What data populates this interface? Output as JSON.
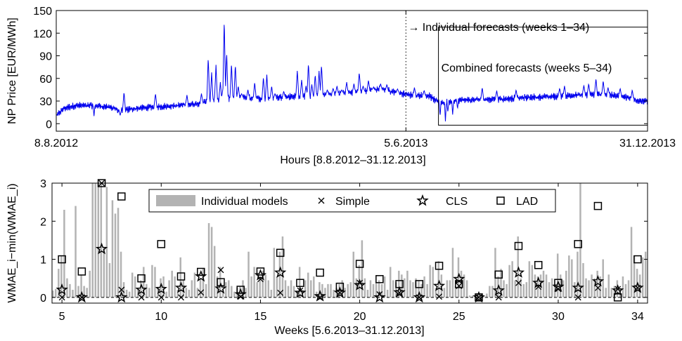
{
  "chart_data": [
    {
      "type": "line",
      "ylabel": "NP Price [EUR/MWh]",
      "xlabel": "Hours [8.8.2012–31.12.2013]",
      "ylim": [
        -10,
        150
      ],
      "yticks": [
        0,
        30,
        60,
        90,
        120,
        150
      ],
      "xlim_hours": [
        0,
        12216
      ],
      "xticks": [
        {
          "hour": 0,
          "label": "8.8.2012"
        },
        {
          "hour": 7224,
          "label": "5.6.2013"
        },
        {
          "hour": 12216,
          "label": "31.12.2013"
        }
      ],
      "split_hour": 7224,
      "annotations": {
        "individual": "→ Individual forecasts (weeks 1–34)",
        "combined": "Combined forecasts (weeks 5–34)"
      },
      "combined_box": {
        "hour_start": 7896,
        "hour_end": 12216,
        "y_bottom": -2,
        "y_top": 128
      },
      "color": "#0000ee",
      "trend": [
        [
          0,
          10
        ],
        [
          150,
          20
        ],
        [
          400,
          24
        ],
        [
          800,
          24
        ],
        [
          1200,
          21
        ],
        [
          1300,
          16
        ],
        [
          1600,
          20
        ],
        [
          2000,
          22
        ],
        [
          2500,
          24
        ],
        [
          2900,
          26
        ],
        [
          3300,
          32
        ],
        [
          3800,
          35
        ],
        [
          4300,
          33
        ],
        [
          4800,
          36
        ],
        [
          5300,
          37
        ],
        [
          5800,
          40
        ],
        [
          6300,
          43
        ],
        [
          6700,
          46
        ],
        [
          7000,
          42
        ],
        [
          7300,
          38
        ],
        [
          7700,
          37
        ],
        [
          7850,
          30
        ],
        [
          8000,
          28
        ],
        [
          8300,
          31
        ],
        [
          8800,
          32
        ],
        [
          9300,
          33
        ],
        [
          9800,
          35
        ],
        [
          10300,
          36
        ],
        [
          10800,
          38
        ],
        [
          11300,
          39
        ],
        [
          11700,
          36
        ],
        [
          12000,
          31
        ],
        [
          12216,
          30
        ]
      ],
      "spikes": [
        [
          1400,
          42
        ],
        [
          2050,
          40
        ],
        [
          2700,
          38
        ],
        [
          3000,
          40
        ],
        [
          3140,
          88
        ],
        [
          3210,
          68
        ],
        [
          3300,
          78
        ],
        [
          3390,
          55
        ],
        [
          3440,
          45
        ],
        [
          3470,
          138
        ],
        [
          3520,
          95
        ],
        [
          3620,
          80
        ],
        [
          3700,
          78
        ],
        [
          3760,
          50
        ],
        [
          3830,
          40
        ],
        [
          3960,
          45
        ],
        [
          4100,
          55
        ],
        [
          4280,
          62
        ],
        [
          4350,
          65
        ],
        [
          4450,
          50
        ],
        [
          4520,
          40
        ],
        [
          4700,
          43
        ],
        [
          4980,
          70
        ],
        [
          5070,
          58
        ],
        [
          5160,
          50
        ],
        [
          5210,
          80
        ],
        [
          5280,
          52
        ],
        [
          5350,
          65
        ],
        [
          5430,
          70
        ],
        [
          5480,
          78
        ],
        [
          5600,
          45
        ],
        [
          5720,
          47
        ],
        [
          5800,
          50
        ],
        [
          5900,
          45
        ],
        [
          6000,
          55
        ],
        [
          6150,
          53
        ],
        [
          6260,
          68
        ],
        [
          6340,
          50
        ],
        [
          6450,
          57
        ],
        [
          6550,
          48
        ],
        [
          6700,
          53
        ],
        [
          6830,
          52
        ],
        [
          7050,
          46
        ],
        [
          7400,
          48
        ],
        [
          7600,
          44
        ],
        [
          8800,
          48
        ],
        [
          9100,
          44
        ],
        [
          9500,
          45
        ],
        [
          10400,
          47
        ],
        [
          10500,
          50
        ],
        [
          10900,
          51
        ],
        [
          11000,
          53
        ],
        [
          11150,
          60
        ],
        [
          11300,
          57
        ],
        [
          11400,
          48
        ],
        [
          11650,
          47
        ],
        [
          11900,
          45
        ]
      ],
      "dips": [
        [
          780,
          10
        ],
        [
          1320,
          11
        ],
        [
          7930,
          10
        ],
        [
          8040,
          3
        ],
        [
          8090,
          15
        ],
        [
          8190,
          12
        ],
        [
          8290,
          20
        ]
      ]
    },
    {
      "type": "bar",
      "ylabel": "WMAE_i−min(WMAE_i)",
      "xlabel": "Weeks [5.6.2013–31.12.2013]",
      "ylim": [
        -0.15,
        3
      ],
      "yticks": [
        0,
        1,
        2,
        3
      ],
      "xlim": [
        4.5,
        34.5
      ],
      "xticks": [
        5,
        10,
        15,
        20,
        25,
        30,
        34
      ],
      "weeks": [
        5,
        6,
        7,
        8,
        9,
        10,
        11,
        12,
        13,
        14,
        15,
        16,
        17,
        18,
        19,
        20,
        21,
        22,
        23,
        24,
        25,
        26,
        27,
        28,
        29,
        30,
        31,
        32,
        33,
        34
      ],
      "individual_models": [
        [
          0.18,
          0.22,
          0.75,
          1.1,
          2.3,
          0.5,
          0.35
        ],
        [
          0.2,
          2.4,
          0.3,
          0.6,
          0.3,
          0.25,
          0.7
        ],
        [
          3.0,
          3.0,
          3.0,
          3.0,
          1.3,
          2.9,
          0.9
        ],
        [
          2.55,
          2.2,
          2.35,
          1.2,
          0.4,
          0.2,
          0.15
        ],
        [
          0.65,
          0.55,
          0.2,
          0.45,
          0.8,
          0.35,
          0.25
        ],
        [
          0.85,
          0.8,
          0.25,
          0.5,
          0.55,
          0.15,
          0.45
        ],
        [
          0.7,
          0.55,
          0.2,
          1.05,
          0.45,
          0.25,
          0.2
        ],
        [
          0.45,
          0.65,
          0.25,
          0.5,
          0.75,
          0.35,
          1.95
        ],
        [
          1.85,
          1.35,
          0.55,
          0.8,
          0.2,
          0.4,
          0.45
        ],
        [
          0.3,
          0.15,
          0.25,
          0.3,
          0.45,
          0.25,
          1.2
        ],
        [
          0.55,
          0.8,
          0.4,
          0.55,
          0.7,
          0.6,
          0.45
        ],
        [
          0.2,
          1.3,
          0.55,
          1.2,
          1.6,
          0.45,
          0.3
        ],
        [
          0.45,
          0.3,
          0.15,
          0.8,
          0.2,
          0.45,
          0.65
        ],
        [
          0.45,
          0.55,
          0.15,
          0.4,
          0.35,
          0.25,
          0.35
        ],
        [
          0.35,
          0.2,
          0.25,
          0.35,
          0.45,
          0.25,
          0.35
        ],
        [
          0.4,
          1.2,
          0.5,
          0.85,
          1.5,
          0.5,
          0.2
        ],
        [
          0.45,
          0.35,
          0.4,
          0.45,
          0.35,
          0.55,
          0.2
        ],
        [
          0.8,
          0.45,
          0.4,
          0.7,
          0.6,
          0.5,
          0.7
        ],
        [
          0.45,
          0.4,
          0.5,
          0.45,
          0.35,
          0.55,
          0.35
        ],
        [
          0.85,
          0.8,
          0.25,
          0.95,
          0.6,
          0.25,
          0.45
        ],
        [
          0.45,
          1.3,
          0.3,
          1.05,
          0.7,
          0.6,
          0.45
        ],
        [
          0.05,
          0.05,
          0.05,
          0.05,
          0.05,
          0.05,
          0.1
        ],
        [
          0.3,
          0.3,
          1.3,
          0.55,
          0.75,
          0.45,
          0.35
        ],
        [
          0.85,
          0.95,
          0.45,
          1.6,
          0.5,
          0.35,
          0.4
        ],
        [
          0.95,
          0.85,
          0.6,
          0.55,
          0.6,
          0.7,
          0.6
        ],
        [
          0.4,
          0.5,
          0.35,
          1.15,
          0.6,
          0.45,
          0.7
        ],
        [
          1.1,
          1.0,
          0.4,
          1.2,
          3.0,
          0.9,
          0.5
        ],
        [
          0.45,
          0.6,
          0.5,
          0.7,
          0.55,
          1.0,
          0.25
        ],
        [
          0.6,
          0.25,
          0.3,
          0.45,
          0.25,
          0.55,
          0.35
        ],
        [
          0.45,
          1.85,
          1.1,
          0.75,
          0.6,
          1.05,
          1.2
        ]
      ],
      "simple": [
        0.0,
        0.0,
        3.0,
        0.2,
        0.0,
        0.0,
        0.0,
        0.13,
        0.72,
        0.02,
        0.48,
        0.12,
        0.18,
        0.0,
        0.12,
        0.38,
        0.08,
        0.12,
        0.0,
        0.02,
        0.3,
        0.0,
        0.0,
        0.38,
        0.28,
        0.22,
        0.0,
        0.25,
        0.22,
        0.25
      ],
      "cls": [
        0.2,
        0.0,
        1.27,
        0.0,
        0.2,
        0.22,
        0.25,
        0.55,
        0.23,
        0.08,
        0.58,
        0.65,
        0.12,
        0.03,
        0.12,
        0.32,
        0.0,
        0.13,
        0.0,
        0.3,
        0.48,
        0.0,
        0.18,
        0.65,
        0.38,
        0.28,
        0.25,
        0.42,
        0.18,
        0.25
      ],
      "lad": [
        1.0,
        0.68,
        3.0,
        2.65,
        0.5,
        1.4,
        0.55,
        0.67,
        0.4,
        0.2,
        0.68,
        1.17,
        0.38,
        0.65,
        0.28,
        0.88,
        0.48,
        0.35,
        0.35,
        0.83,
        0.35,
        0.0,
        0.6,
        1.35,
        0.85,
        0.38,
        1.4,
        2.4,
        0.0,
        1.0
      ],
      "legend": {
        "placement": "top-right",
        "individual": "Individual models",
        "simple": "Simple",
        "cls": "CLS",
        "lad": "LAD"
      },
      "bar_color": "#b3b3b3"
    }
  ]
}
